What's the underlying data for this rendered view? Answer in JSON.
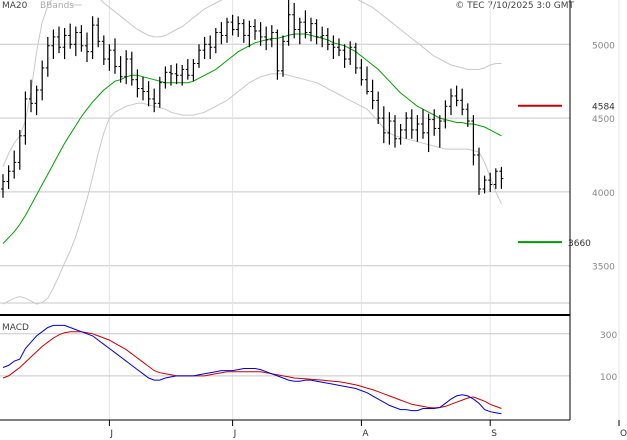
{
  "legend": {
    "ma_label": "MA20",
    "bb_label": "BBands"
  },
  "copyright": "© TEC 7/10/2025 3:0 GMT",
  "levels": {
    "resistance": "4584",
    "support": "3660"
  },
  "macd_label": "MACD",
  "colors": {
    "price": "#000000",
    "ma20": "#00a000",
    "bbands": "#c8c8c8",
    "resistance": "#cc0000",
    "support": "#009900",
    "macd": "#0000dd",
    "signal": "#cc0000",
    "grid": "#c8c8c8",
    "frame": "#000000"
  },
  "chart_data": [
    {
      "type": "ohlc",
      "title": "",
      "y_ticks": [
        5000,
        4500,
        4000,
        3500
      ],
      "y_tick_labels": [
        "5000",
        "4500",
        "4000",
        "3500"
      ],
      "ylim": [
        3200,
        5300
      ],
      "x_month_labels": [
        "J",
        "J",
        "A",
        "S",
        "O"
      ],
      "x_month_index": [
        19,
        41,
        64,
        87,
        110
      ],
      "resistance": 4584,
      "support": 3660,
      "bars": [
        [
          4020,
          4120,
          3960,
          4070
        ],
        [
          4070,
          4180,
          4020,
          4140
        ],
        [
          4140,
          4280,
          4090,
          4200
        ],
        [
          4200,
          4420,
          4150,
          4380
        ],
        [
          4380,
          4680,
          4320,
          4630
        ],
        [
          4630,
          4760,
          4540,
          4600
        ],
        [
          4600,
          4720,
          4520,
          4690
        ],
        [
          4690,
          4890,
          4620,
          4840
        ],
        [
          4840,
          5050,
          4780,
          4990
        ],
        [
          4990,
          5100,
          4900,
          5050
        ],
        [
          5050,
          5120,
          4940,
          4980
        ],
        [
          4980,
          5110,
          4900,
          5060
        ],
        [
          5060,
          5140,
          4970,
          5000
        ],
        [
          5000,
          5120,
          4920,
          5080
        ],
        [
          5080,
          5130,
          4950,
          4990
        ],
        [
          4990,
          5080,
          4880,
          4950
        ],
        [
          4950,
          5190,
          4900,
          5130
        ],
        [
          5130,
          5180,
          4980,
          5020
        ],
        [
          5020,
          5060,
          4860,
          4900
        ],
        [
          4900,
          5000,
          4820,
          4960
        ],
        [
          4960,
          5040,
          4800,
          4850
        ],
        [
          4850,
          4920,
          4740,
          4780
        ],
        [
          4780,
          4960,
          4730,
          4900
        ],
        [
          4900,
          4950,
          4720,
          4760
        ],
        [
          4760,
          4830,
          4640,
          4700
        ],
        [
          4700,
          4780,
          4620,
          4680
        ],
        [
          4680,
          4750,
          4580,
          4630
        ],
        [
          4630,
          4700,
          4540,
          4600
        ],
        [
          4600,
          4780,
          4570,
          4740
        ],
        [
          4740,
          4850,
          4700,
          4810
        ],
        [
          4810,
          4860,
          4720,
          4800
        ],
        [
          4800,
          4870,
          4730,
          4790
        ],
        [
          4790,
          4860,
          4720,
          4830
        ],
        [
          4830,
          4900,
          4760,
          4790
        ],
        [
          4790,
          4900,
          4750,
          4870
        ],
        [
          4870,
          5000,
          4840,
          4960
        ],
        [
          4960,
          5050,
          4900,
          5000
        ],
        [
          5000,
          5060,
          4900,
          4980
        ],
        [
          4980,
          5110,
          4940,
          5080
        ],
        [
          5080,
          5150,
          5000,
          5060
        ],
        [
          5060,
          5180,
          5010,
          5150
        ],
        [
          5150,
          5200,
          5060,
          5100
        ],
        [
          5100,
          5190,
          5050,
          5140
        ],
        [
          5140,
          5170,
          5010,
          5060
        ],
        [
          5060,
          5160,
          4980,
          5120
        ],
        [
          5120,
          5170,
          5030,
          5090
        ],
        [
          5090,
          5150,
          4990,
          5050
        ],
        [
          5050,
          5120,
          4960,
          5030
        ],
        [
          5030,
          5130,
          4980,
          5080
        ],
        [
          5080,
          5100,
          4760,
          4820
        ],
        [
          4820,
          5060,
          4780,
          5020
        ],
        [
          5020,
          5380,
          4990,
          5200
        ],
        [
          5200,
          5280,
          5040,
          5100
        ],
        [
          5100,
          5180,
          5000,
          5150
        ],
        [
          5150,
          5230,
          5040,
          5080
        ],
        [
          5080,
          5180,
          5020,
          5140
        ],
        [
          5140,
          5170,
          5000,
          5050
        ],
        [
          5050,
          5120,
          4980,
          5060
        ],
        [
          5060,
          5110,
          4960,
          5000
        ],
        [
          5000,
          5060,
          4900,
          4980
        ],
        [
          4980,
          5040,
          4920,
          4960
        ],
        [
          4960,
          5000,
          4840,
          4900
        ],
        [
          4900,
          5020,
          4860,
          4980
        ],
        [
          4980,
          5010,
          4800,
          4840
        ],
        [
          4840,
          4900,
          4720,
          4760
        ],
        [
          4760,
          4850,
          4660,
          4680
        ],
        [
          4680,
          4760,
          4560,
          4620
        ],
        [
          4620,
          4680,
          4460,
          4500
        ],
        [
          4500,
          4580,
          4330,
          4400
        ],
        [
          4400,
          4540,
          4320,
          4480
        ],
        [
          4480,
          4520,
          4300,
          4360
        ],
        [
          4360,
          4460,
          4320,
          4420
        ],
        [
          4420,
          4540,
          4360,
          4500
        ],
        [
          4500,
          4560,
          4360,
          4420
        ],
        [
          4420,
          4520,
          4340,
          4460
        ],
        [
          4460,
          4560,
          4360,
          4400
        ],
        [
          4400,
          4530,
          4270,
          4490
        ],
        [
          4490,
          4560,
          4380,
          4430
        ],
        [
          4430,
          4520,
          4300,
          4480
        ],
        [
          4480,
          4620,
          4430,
          4580
        ],
        [
          4580,
          4700,
          4520,
          4650
        ],
        [
          4650,
          4720,
          4580,
          4620
        ],
        [
          4620,
          4700,
          4520,
          4560
        ],
        [
          4560,
          4600,
          4440,
          4480
        ],
        [
          4480,
          4520,
          4180,
          4250
        ],
        [
          4250,
          4300,
          3980,
          4020
        ],
        [
          4020,
          4110,
          3990,
          4080
        ],
        [
          4080,
          4130,
          4000,
          4050
        ],
        [
          4050,
          4160,
          4020,
          4140
        ],
        [
          4140,
          4170,
          4020,
          4090
        ]
      ],
      "ma20": [
        3650,
        3690,
        3730,
        3780,
        3840,
        3910,
        3980,
        4050,
        4120,
        4190,
        4260,
        4330,
        4390,
        4450,
        4510,
        4560,
        4610,
        4650,
        4690,
        4720,
        4750,
        4760,
        4780,
        4790,
        4790,
        4780,
        4770,
        4760,
        4750,
        4740,
        4740,
        4740,
        4740,
        4740,
        4750,
        4770,
        4790,
        4810,
        4830,
        4860,
        4890,
        4920,
        4950,
        4970,
        4990,
        5010,
        5020,
        5030,
        5040,
        5040,
        5050,
        5060,
        5070,
        5070,
        5070,
        5060,
        5050,
        5040,
        5030,
        5010,
        5000,
        4990,
        4970,
        4950,
        4920,
        4890,
        4860,
        4830,
        4790,
        4750,
        4710,
        4670,
        4640,
        4610,
        4580,
        4560,
        4540,
        4520,
        4500,
        4490,
        4480,
        4470,
        4470,
        4460,
        4460,
        4450,
        4440,
        4420,
        4400,
        4380
      ],
      "bb_upper": [
        4170,
        4260,
        4330,
        4380,
        4480,
        4680,
        4950,
        5150,
        5260,
        5320,
        5350,
        5360,
        5370,
        5380,
        5380,
        5370,
        5350,
        5320,
        5280,
        5250,
        5220,
        5190,
        5160,
        5130,
        5100,
        5080,
        5060,
        5050,
        5050,
        5060,
        5080,
        5100,
        5120,
        5150,
        5180,
        5210,
        5240,
        5260,
        5280,
        5300,
        5320,
        5340,
        5350,
        5360,
        5370,
        5380,
        5370,
        5360,
        5350,
        5340,
        5350,
        5380,
        5400,
        5410,
        5410,
        5400,
        5390,
        5380,
        5370,
        5360,
        5350,
        5340,
        5330,
        5310,
        5290,
        5270,
        5250,
        5220,
        5190,
        5160,
        5130,
        5100,
        5070,
        5040,
        5010,
        4980,
        4950,
        4920,
        4900,
        4880,
        4860,
        4850,
        4840,
        4830,
        4830,
        4830,
        4840,
        4860,
        4870,
        4870
      ],
      "bb_lower": [
        3240,
        3260,
        3280,
        3290,
        3280,
        3260,
        3240,
        3250,
        3280,
        3350,
        3430,
        3520,
        3600,
        3700,
        3820,
        3950,
        4100,
        4260,
        4400,
        4500,
        4540,
        4560,
        4580,
        4590,
        4600,
        4600,
        4590,
        4580,
        4570,
        4560,
        4540,
        4530,
        4520,
        4520,
        4520,
        4530,
        4540,
        4560,
        4580,
        4600,
        4620,
        4650,
        4680,
        4710,
        4740,
        4760,
        4780,
        4790,
        4800,
        4800,
        4800,
        4790,
        4780,
        4770,
        4760,
        4750,
        4740,
        4720,
        4700,
        4680,
        4660,
        4640,
        4620,
        4600,
        4580,
        4560,
        4520,
        4480,
        4430,
        4400,
        4380,
        4370,
        4360,
        4350,
        4340,
        4330,
        4320,
        4310,
        4300,
        4290,
        4290,
        4290,
        4290,
        4290,
        4280,
        4270,
        4200,
        4100,
        4000,
        3920
      ],
      "macd": [
        140,
        150,
        170,
        180,
        230,
        260,
        290,
        310,
        330,
        340,
        340,
        340,
        330,
        320,
        310,
        300,
        290,
        270,
        250,
        230,
        210,
        190,
        170,
        150,
        130,
        110,
        90,
        80,
        80,
        90,
        95,
        100,
        100,
        100,
        100,
        105,
        110,
        115,
        120,
        125,
        125,
        125,
        130,
        135,
        135,
        135,
        130,
        120,
        110,
        100,
        90,
        80,
        75,
        75,
        80,
        80,
        75,
        70,
        65,
        60,
        55,
        50,
        45,
        40,
        30,
        20,
        5,
        -10,
        -25,
        -40,
        -50,
        -60,
        -60,
        -65,
        -65,
        -55,
        -55,
        -55,
        -50,
        -30,
        -10,
        5,
        10,
        5,
        -10,
        -30,
        -60,
        -70,
        -75,
        -80
      ],
      "signal": [
        90,
        100,
        120,
        140,
        165,
        190,
        215,
        240,
        260,
        280,
        295,
        305,
        310,
        310,
        310,
        305,
        300,
        290,
        280,
        270,
        255,
        240,
        225,
        205,
        185,
        165,
        145,
        125,
        115,
        110,
        105,
        100,
        100,
        100,
        100,
        100,
        100,
        105,
        110,
        115,
        120,
        120,
        120,
        120,
        120,
        120,
        120,
        115,
        110,
        105,
        100,
        95,
        90,
        88,
        86,
        84,
        82,
        80,
        77,
        75,
        72,
        68,
        63,
        57,
        50,
        42,
        35,
        25,
        15,
        5,
        -5,
        -15,
        -25,
        -35,
        -40,
        -45,
        -50,
        -52,
        -50,
        -45,
        -35,
        -25,
        -15,
        -5,
        0,
        -10,
        -20,
        -35,
        -45,
        -55
      ],
      "macd_ticks": [
        300,
        100
      ],
      "macd_tick_labels": [
        "300",
        "100"
      ],
      "macd_ylim": [
        -100,
        375
      ]
    }
  ]
}
